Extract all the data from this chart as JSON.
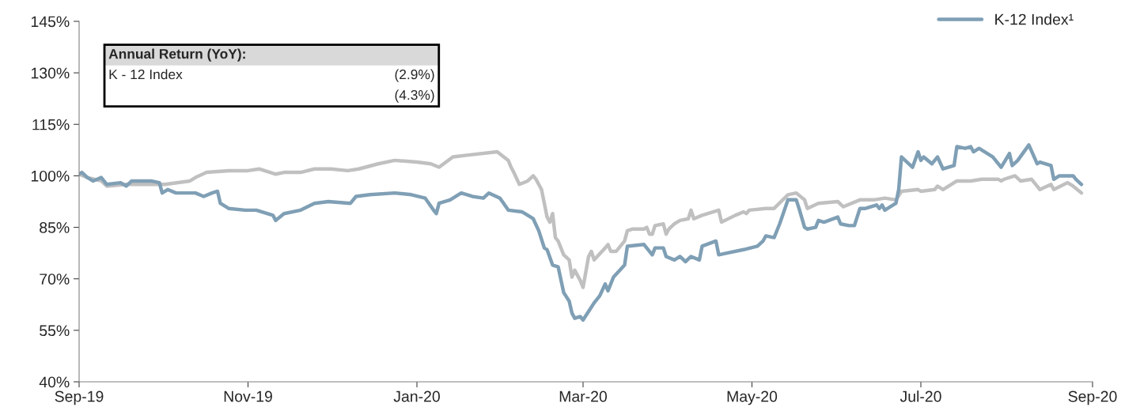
{
  "chart_data": {
    "type": "line",
    "annotations": [
      "Annual Return (YoY):",
      "K - 12 Index",
      "(2.9%)",
      "(4.3%)"
    ],
    "series": [
      {
        "color": "#c0c0c0",
        "x": [
          "2019-09-01",
          "2019-09-04",
          "2019-09-09",
          "2019-09-11",
          "2019-09-18",
          "2019-10-02",
          "2019-10-11",
          "2019-10-13",
          "2019-10-17",
          "2019-10-25",
          "2019-11-01",
          "2019-11-05",
          "2019-11-11",
          "2019-11-14",
          "2019-11-20",
          "2019-11-25",
          "2019-12-01",
          "2019-12-07",
          "2019-12-11",
          "2019-12-18",
          "2019-12-24",
          "2020-01-01",
          "2020-01-06",
          "2020-01-09",
          "2020-01-14",
          "2020-01-19",
          "2020-01-30",
          "2020-02-03",
          "2020-02-04",
          "2020-02-05",
          "2020-02-07",
          "2020-02-10",
          "2020-02-12",
          "2020-02-13",
          "2020-02-15",
          "2020-02-17",
          "2020-02-18",
          "2020-02-19",
          "2020-02-20",
          "2020-02-21",
          "2020-02-23",
          "2020-02-25",
          "2020-02-26",
          "2020-02-27",
          "2020-02-29",
          "2020-03-01",
          "2020-03-03",
          "2020-03-04",
          "2020-03-05",
          "2020-03-09",
          "2020-03-10",
          "2020-03-11",
          "2020-03-13",
          "2020-03-16",
          "2020-03-17",
          "2020-03-19",
          "2020-03-23",
          "2020-03-24",
          "2020-03-25",
          "2020-03-26",
          "2020-03-27",
          "2020-03-30",
          "2020-03-31",
          "2020-04-01",
          "2020-04-03",
          "2020-04-05",
          "2020-04-08",
          "2020-04-09",
          "2020-04-10",
          "2020-04-13",
          "2020-04-19",
          "2020-04-20",
          "2020-04-25",
          "2020-04-28",
          "2020-04-29",
          "2020-04-30",
          "2020-05-06",
          "2020-05-09",
          "2020-05-14",
          "2020-05-17",
          "2020-05-20",
          "2020-05-21",
          "2020-05-25",
          "2020-06-01",
          "2020-06-03",
          "2020-06-09",
          "2020-06-14",
          "2020-06-18",
          "2020-06-22",
          "2020-06-24",
          "2020-06-30",
          "2020-07-01",
          "2020-07-06",
          "2020-07-07",
          "2020-07-09",
          "2020-07-14",
          "2020-07-19",
          "2020-07-23",
          "2020-07-29",
          "2020-07-30",
          "2020-07-31",
          "2020-08-04",
          "2020-08-06",
          "2020-08-10",
          "2020-08-13",
          "2020-08-17",
          "2020-08-18",
          "2020-08-23",
          "2020-08-25",
          "2020-08-28"
        ],
        "values": [
          100.5,
          99.5,
          98.5,
          97,
          97.5,
          97.5,
          98.5,
          99.5,
          101,
          101.5,
          101.5,
          102,
          100.5,
          101,
          101,
          102,
          102,
          101.5,
          102,
          103.5,
          104.5,
          104,
          103.5,
          102.5,
          105.5,
          106,
          107,
          104.5,
          102.5,
          101,
          97.5,
          98.5,
          100,
          99,
          96,
          88,
          86.5,
          89,
          82,
          81,
          77,
          75.5,
          70.5,
          72.5,
          69.5,
          67.5,
          76.5,
          78,
          75.5,
          79,
          80,
          78,
          78,
          81,
          84,
          84.5,
          84.5,
          85,
          83,
          83,
          85.5,
          86,
          83,
          84.5,
          86,
          87,
          87.5,
          90,
          87.5,
          88.5,
          90,
          86.5,
          88.5,
          89.5,
          89,
          90,
          90.5,
          90.5,
          94.5,
          95,
          93,
          90.5,
          92,
          92.5,
          91,
          93,
          93,
          93.5,
          93,
          95.5,
          96,
          95.5,
          96,
          97,
          96,
          98.5,
          98.5,
          99,
          99,
          98.5,
          99,
          100,
          98.5,
          99,
          96,
          97.5,
          96,
          98,
          97,
          95
        ]
      },
      {
        "name": "K-12 Index¹",
        "color": "#7f9fb5",
        "x": [
          "2019-09-01",
          "2019-09-02",
          "2019-09-04",
          "2019-09-06",
          "2019-09-09",
          "2019-09-11",
          "2019-09-16",
          "2019-09-18",
          "2019-09-20",
          "2019-09-27",
          "2019-09-30",
          "2019-10-01",
          "2019-10-03",
          "2019-10-06",
          "2019-10-13",
          "2019-10-16",
          "2019-10-19",
          "2019-10-21",
          "2019-10-22",
          "2019-10-25",
          "2019-10-31",
          "2019-11-04",
          "2019-11-10",
          "2019-11-11",
          "2019-11-14",
          "2019-11-20",
          "2019-11-25",
          "2019-11-30",
          "2019-12-08",
          "2019-12-10",
          "2019-12-15",
          "2019-12-24",
          "2019-12-30",
          "2020-01-04",
          "2020-01-07",
          "2020-01-08",
          "2020-01-09",
          "2020-01-13",
          "2020-01-17",
          "2020-01-21",
          "2020-01-25",
          "2020-01-27",
          "2020-01-31",
          "2020-02-03",
          "2020-02-08",
          "2020-02-09",
          "2020-02-12",
          "2020-02-14",
          "2020-02-16",
          "2020-02-17",
          "2020-02-19",
          "2020-02-21",
          "2020-02-23",
          "2020-02-25",
          "2020-02-26",
          "2020-02-27",
          "2020-02-29",
          "2020-03-01",
          "2020-03-03",
          "2020-03-05",
          "2020-03-07",
          "2020-03-09",
          "2020-03-10",
          "2020-03-12",
          "2020-03-16",
          "2020-03-17",
          "2020-03-23",
          "2020-03-26",
          "2020-03-27",
          "2020-03-30",
          "2020-03-31",
          "2020-04-03",
          "2020-04-05",
          "2020-04-07",
          "2020-04-09",
          "2020-04-12",
          "2020-04-13",
          "2020-04-18",
          "2020-04-19",
          "2020-04-22",
          "2020-04-28",
          "2020-05-03",
          "2020-05-05",
          "2020-05-06",
          "2020-05-09",
          "2020-05-11",
          "2020-05-14",
          "2020-05-17",
          "2020-05-18",
          "2020-05-20",
          "2020-05-21",
          "2020-05-24",
          "2020-05-25",
          "2020-05-27",
          "2020-06-01",
          "2020-06-02",
          "2020-06-05",
          "2020-06-07",
          "2020-06-09",
          "2020-06-11",
          "2020-06-15",
          "2020-06-16",
          "2020-06-17",
          "2020-06-18",
          "2020-06-19",
          "2020-06-22",
          "2020-06-23",
          "2020-06-24",
          "2020-06-28",
          "2020-06-30",
          "2020-07-01",
          "2020-07-02",
          "2020-07-05",
          "2020-07-07",
          "2020-07-09",
          "2020-07-13",
          "2020-07-14",
          "2020-07-17",
          "2020-07-19",
          "2020-07-20",
          "2020-07-22",
          "2020-07-26",
          "2020-07-27",
          "2020-07-30",
          "2020-08-02",
          "2020-08-03",
          "2020-08-05",
          "2020-08-09",
          "2020-08-12",
          "2020-08-13",
          "2020-08-17",
          "2020-08-18",
          "2020-08-20",
          "2020-08-25",
          "2020-08-26",
          "2020-08-28"
        ],
        "values": [
          100.5,
          101,
          99.5,
          98.5,
          99.5,
          97.5,
          98,
          97,
          98.5,
          98.5,
          98,
          95,
          96,
          95,
          95,
          94,
          95,
          95.5,
          92,
          90.5,
          90,
          90,
          88.5,
          87,
          89,
          90,
          92,
          92.5,
          92,
          94,
          94.5,
          95,
          94.5,
          93.5,
          90,
          89,
          92,
          93,
          95,
          94,
          93.5,
          95,
          93.5,
          90,
          89.5,
          89,
          87.5,
          84,
          79,
          78.5,
          74,
          73.5,
          66,
          63.5,
          60,
          58.5,
          59,
          58,
          60.5,
          63,
          65,
          68.5,
          66.5,
          70.5,
          74,
          79.5,
          80,
          77,
          79,
          79,
          76.5,
          75.5,
          76.5,
          75,
          76.5,
          75.5,
          79.5,
          81,
          77,
          77.5,
          78.5,
          79.5,
          81,
          82.5,
          82,
          86,
          93,
          93,
          90.5,
          85,
          84.5,
          85,
          87,
          86.5,
          88,
          86,
          85.5,
          85.5,
          90.5,
          90.5,
          91.5,
          90.5,
          91.5,
          90,
          90.5,
          92,
          96,
          105.5,
          102.5,
          107,
          104.5,
          105.5,
          103.5,
          105.5,
          102,
          103,
          108.5,
          108,
          108.5,
          107,
          108,
          106,
          105.5,
          102.5,
          106.5,
          103,
          104.5,
          109,
          103.5,
          104,
          103,
          99,
          100,
          100,
          99,
          97.5
        ]
      }
    ],
    "xlim": [
      "2019-09-01",
      "2020-09-01"
    ],
    "xticks": [
      {
        "value": "2019-09-01",
        "label": "Sep-19"
      },
      {
        "value": "2019-11-01",
        "label": "Nov-19"
      },
      {
        "value": "2020-01-01",
        "label": "Jan-20"
      },
      {
        "value": "2020-03-01",
        "label": "Mar-20"
      },
      {
        "value": "2020-05-01",
        "label": "May-20"
      },
      {
        "value": "2020-07-01",
        "label": "Jul-20"
      },
      {
        "value": "2020-09-01",
        "label": "Sep-20"
      }
    ],
    "ylim": [
      40,
      145
    ],
    "yticks": [
      {
        "value": 40,
        "label": "40%"
      },
      {
        "value": 55,
        "label": "55%"
      },
      {
        "value": 70,
        "label": "70%"
      },
      {
        "value": 85,
        "label": "85%"
      },
      {
        "value": 100,
        "label": "100%"
      },
      {
        "value": 115,
        "label": "115%"
      },
      {
        "value": 130,
        "label": "130%"
      },
      {
        "value": 145,
        "label": "145%"
      }
    ],
    "grid": false,
    "legend": "top right",
    "line_style": "solid"
  }
}
